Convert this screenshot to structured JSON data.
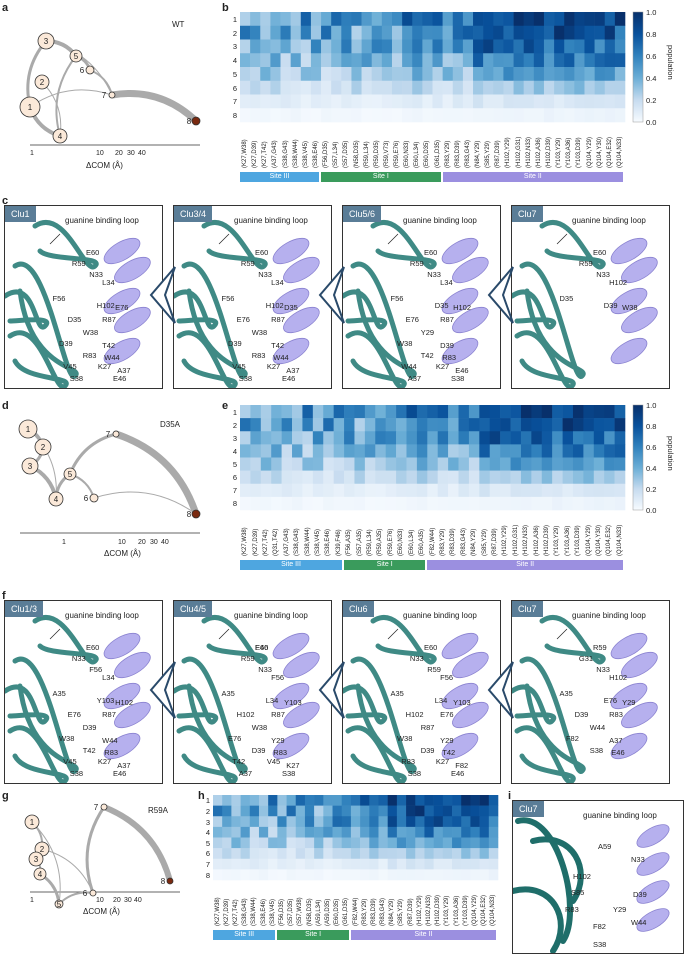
{
  "panels": {
    "a": {
      "letter": "a",
      "title": "WT",
      "nodes": [
        "1",
        "2",
        "3",
        "4",
        "5",
        "6",
        "7",
        "8"
      ],
      "xaxis": "ΔCOM (Å)",
      "ticks": [
        "1",
        "10",
        "20",
        "30",
        "40"
      ]
    },
    "b": {
      "letter": "b"
    },
    "c": {
      "letter": "c"
    },
    "d": {
      "letter": "d",
      "title": "D35A",
      "nodes": [
        "1",
        "2",
        "3",
        "4",
        "5",
        "6",
        "7",
        "8"
      ],
      "xaxis": "ΔCOM (Å)",
      "ticks": [
        "1",
        "10",
        "20",
        "30",
        "40"
      ]
    },
    "e": {
      "letter": "e"
    },
    "f": {
      "letter": "f"
    },
    "g": {
      "letter": "g",
      "title": "R59A",
      "nodes": [
        "1",
        "2",
        "3",
        "4",
        "5",
        "6",
        "7",
        "8"
      ],
      "xaxis": "ΔCOM (Å)",
      "ticks": [
        "1",
        "10",
        "20",
        "30",
        "40"
      ]
    },
    "h": {
      "letter": "h"
    },
    "i": {
      "letter": "i"
    }
  },
  "colorbar": {
    "title": "population",
    "ticks": [
      "1.0",
      "0.8",
      "0.6",
      "0.4",
      "0.2",
      "0.0"
    ]
  },
  "heatmaps": {
    "b": {
      "rows": [
        "1",
        "2",
        "3",
        "4",
        "5",
        "6",
        "7",
        "8"
      ],
      "columns": [
        "(K27,W38)",
        "(K27,D39)",
        "(K27,T42)",
        "(A37,G43)",
        "(S38,G43)",
        "(S38,W44)",
        "(S38,V45)",
        "(S38,E46)",
        "(F56,D35)",
        "(S57,L34)",
        "(S57,D35)",
        "(N58,D35)",
        "(R59,L34)",
        "(R59,D35)",
        "(R59,V73)",
        "(R59,E76)",
        "(E60,N33)",
        "(E60,L34)",
        "(E60,D35)",
        "(G61,D35)",
        "(R83,Y29)",
        "(R83,D39)",
        "(R83,G43)",
        "(N84,Y29)",
        "(S85,Y29)",
        "(R87,D39)",
        "(H102,Y29)",
        "(H102,G31)",
        "(H102,N33)",
        "(H102,A36)",
        "(H102,D39)",
        "(Y103,Y29)",
        "(Y103,A36)",
        "(Y103,D39)",
        "(Q104,Y29)",
        "(Q104,Y30)",
        "(Q104,E32)",
        "(Q104,N33)"
      ],
      "sites": [
        {
          "label": "Site III",
          "color": "#4ea6e0"
        },
        {
          "label": "Site I",
          "color": "#3a9b5c"
        },
        {
          "label": "Site II",
          "color": "#9b8fe0"
        }
      ]
    },
    "e": {
      "rows": [
        "1",
        "2",
        "3",
        "4",
        "5",
        "6",
        "7",
        "8"
      ],
      "columns": [
        "(K27,W38)",
        "(K27,D39)",
        "(K27,T42)",
        "(Q31,T42)",
        "(A37,G43)",
        "(S38,G43)",
        "(S38,W44)",
        "(S38,V45)",
        "(S38,E46)",
        "(K39,F46)",
        "(F56,A35)",
        "(S57,A35)",
        "(R59,L34)",
        "(R59,A35)",
        "(R59,E76)",
        "(E60,N33)",
        "(E60,L34)",
        "(E60,A35)",
        "(F82,W44)",
        "(R83,Y29)",
        "(R83,D39)",
        "(R83,G43)",
        "(N84,Y29)",
        "(S85,Y29)",
        "(R87,D39)",
        "(H102,Y29)",
        "(H102,G31)",
        "(H102,N33)",
        "(H102,A36)",
        "(H102,D39)",
        "(Y103,Y29)",
        "(Y103,A36)",
        "(Y103,D39)",
        "(Q104,Y29)",
        "(Q104,Y30)",
        "(Q104,E32)",
        "(Q104,N33)"
      ],
      "sites": [
        {
          "label": "Site III",
          "color": "#4ea6e0"
        },
        {
          "label": "Site I",
          "color": "#3a9b5c"
        },
        {
          "label": "Site II",
          "color": "#9b8fe0"
        }
      ]
    },
    "h": {
      "rows": [
        "1",
        "2",
        "3",
        "4",
        "5",
        "6",
        "7",
        "8"
      ],
      "columns": [
        "(K27,W38)",
        "(K27,D39)",
        "(K27,T42)",
        "(S38,G43)",
        "(S38,W44)",
        "(S38,E46)",
        "(S38,V45)",
        "(F56,D35)",
        "(S57,D35)",
        "(S57,W38)",
        "(N58,D35)",
        "(A59,L34)",
        "(A59,D35)",
        "(E60,D35)",
        "(G61,D35)",
        "(F82,W44)",
        "(R83,Y29)",
        "(R83,D39)",
        "(R83,G43)",
        "(N84,Y29)",
        "(S85,Y29)",
        "(R87,D39)",
        "(H102,Y29)",
        "(H102,N33)",
        "(H102,D39)",
        "(Y103,Y29)",
        "(Y103,A36)",
        "(Y103,D39)",
        "(Q104,Y29)",
        "(Q104,E32)",
        "(Q104,N33)"
      ],
      "sites": [
        {
          "label": "Site III",
          "color": "#4ea6e0"
        },
        {
          "label": "Site I",
          "color": "#3a9b5c"
        },
        {
          "label": "Site II",
          "color": "#9b8fe0"
        }
      ]
    }
  },
  "structures": {
    "c": [
      {
        "tag": "Clu1",
        "loop": "guanine binding loop",
        "labels": [
          "E60",
          "R59",
          "N33",
          "L34",
          "F56",
          "H102",
          "E76",
          "D35",
          "R87",
          "W38",
          "D39",
          "T42",
          "R83",
          "W44",
          "V45",
          "K27",
          "A37",
          "S38",
          "E46"
        ]
      },
      {
        "tag": "Clu3/4",
        "loop": "guanine binding loop",
        "labels": [
          "E60",
          "R59",
          "N33",
          "L34",
          "F56",
          "H102",
          "D35",
          "E76",
          "R87",
          "W38",
          "D39",
          "T42",
          "R83",
          "W44",
          "V45",
          "K27",
          "A37",
          "S38",
          "E46"
        ]
      },
      {
        "tag": "Clu5/6",
        "loop": "guanine binding loop",
        "labels": [
          "E60",
          "R59",
          "N33",
          "L34",
          "F56",
          "D35",
          "H102",
          "E76",
          "R87",
          "Y29",
          "W38",
          "D39",
          "T42",
          "R83",
          "W44",
          "K27",
          "E46",
          "A37",
          "S38"
        ]
      },
      {
        "tag": "Clu7",
        "loop": "guanine binding loop",
        "labels": [
          "E60",
          "R59",
          "N33",
          "H102",
          "D35",
          "D39",
          "W38"
        ]
      }
    ],
    "f": [
      {
        "tag": "Clu1/3",
        "loop": "guanine binding loop",
        "labels": [
          "E60",
          "N33",
          "F56",
          "L34",
          "A35",
          "Y103",
          "H102",
          "E76",
          "R87",
          "D39",
          "W38",
          "W44",
          "T42",
          "R83",
          "V45",
          "K27",
          "A37",
          "S38",
          "E46"
        ]
      },
      {
        "tag": "Clu4/5",
        "loop": "guanine binding loop",
        "labels": [
          "E60",
          "R59",
          "N33",
          "F56",
          "A35",
          "L34",
          "Y103",
          "H102",
          "R87",
          "W38",
          "E76",
          "Y29",
          "D39",
          "R83",
          "T42",
          "V45",
          "K27",
          "A37",
          "S38",
          "E46"
        ]
      },
      {
        "tag": "Clu6",
        "loop": "guanine binding loop",
        "labels": [
          "E60",
          "N33",
          "R59",
          "F56",
          "A35",
          "L34",
          "Y103",
          "H102",
          "E76",
          "R87",
          "W38",
          "Y29",
          "D39",
          "T42",
          "R83",
          "K27",
          "F82",
          "S38",
          "E46"
        ]
      },
      {
        "tag": "Clu7",
        "loop": "guanine binding loop",
        "labels": [
          "R59",
          "G31",
          "N33",
          "H102",
          "A35",
          "E76",
          "Y29",
          "D39",
          "R83",
          "W44",
          "F82",
          "A37",
          "S38",
          "E46"
        ]
      }
    ],
    "i": {
      "tag": "Clu7",
      "loop": "guanine binding loop",
      "labels": [
        "A59",
        "N33",
        "H102",
        "S85",
        "D39",
        "R83",
        "Y29",
        "W44",
        "F82",
        "S38"
      ]
    }
  }
}
